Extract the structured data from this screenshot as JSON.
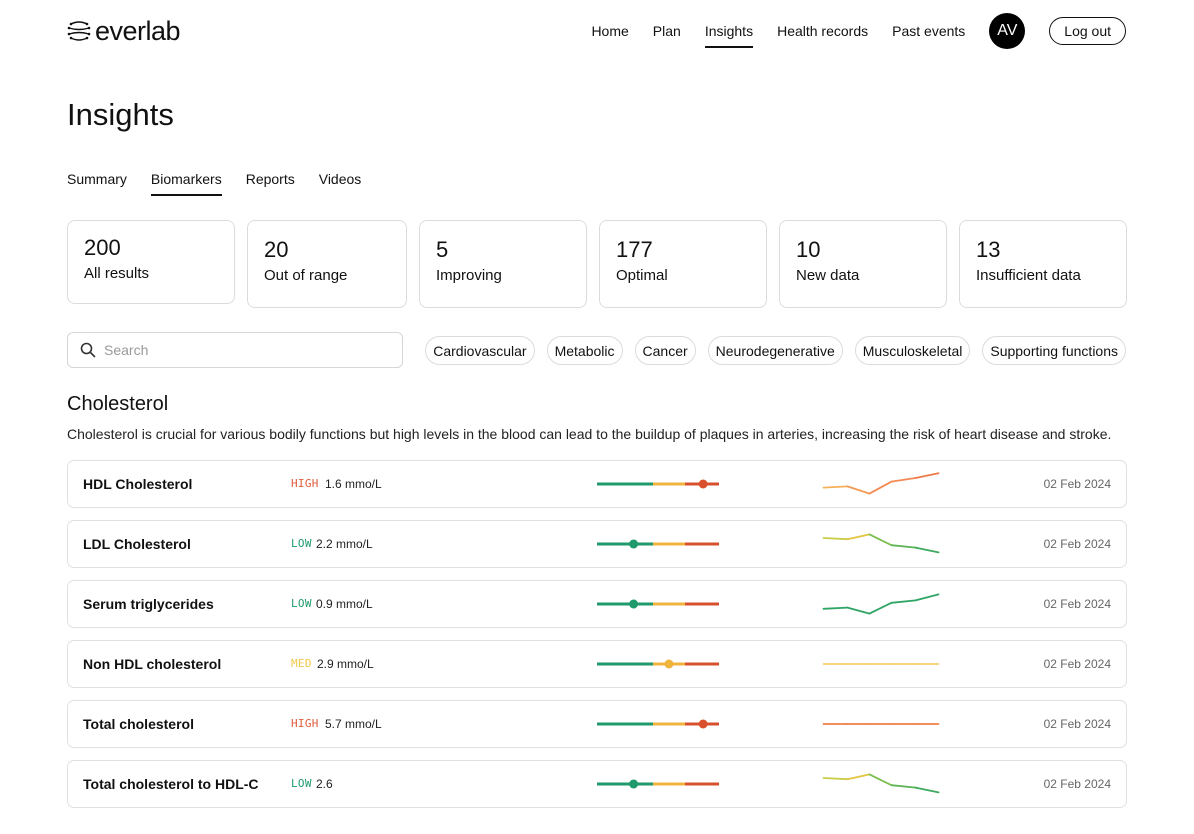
{
  "brand": {
    "name": "everlab"
  },
  "nav": {
    "items": [
      {
        "label": "Home",
        "active": false
      },
      {
        "label": "Plan",
        "active": false
      },
      {
        "label": "Insights",
        "active": true
      },
      {
        "label": "Health records",
        "active": false
      },
      {
        "label": "Past events",
        "active": false
      }
    ],
    "avatar_initials": "AV",
    "logout_label": "Log out"
  },
  "page": {
    "title": "Insights"
  },
  "tabs": [
    {
      "label": "Summary",
      "active": false
    },
    {
      "label": "Biomarkers",
      "active": true
    },
    {
      "label": "Reports",
      "active": false
    },
    {
      "label": "Videos",
      "active": false
    }
  ],
  "stats": [
    {
      "value": "200",
      "label": "All results"
    },
    {
      "value": "20",
      "label": "Out of range"
    },
    {
      "value": "5",
      "label": "Improving"
    },
    {
      "value": "177",
      "label": "Optimal"
    },
    {
      "value": "10",
      "label": "New data"
    },
    {
      "value": "13",
      "label": "Insufficient data"
    }
  ],
  "search": {
    "placeholder": "Search",
    "value": ""
  },
  "filters": [
    "Cardiovascular",
    "Metabolic",
    "Cancer",
    "Neurodegenerative",
    "Musculoskeletal",
    "Supporting functions"
  ],
  "section": {
    "title": "Cholesterol",
    "description": "Cholesterol is crucial for various bodily functions but high levels in the blood can lead to the buildup of plaques in arteries, increasing the risk of heart disease and stroke."
  },
  "colors": {
    "low": "#1e9a6c",
    "med": "#f0b43c",
    "high": "#d9512c",
    "range_green": "#1e9a6c",
    "range_yellow": "#f0b43c",
    "range_red": "#d9512c"
  },
  "biomarkers": [
    {
      "name": "HDL Cholesterol",
      "status": "HIGH",
      "status_color": "#e05a3a",
      "value": "1.6 mmo/L",
      "range_position": 0.87,
      "marker_color": "#d9512c",
      "trend": [
        0.35,
        0.4,
        0.1,
        0.6,
        0.75,
        0.95
      ],
      "trend_colors": [
        "#f6b15c",
        "#f6b15c",
        "#f39a55",
        "#f58a50",
        "#f38a55",
        "#ef7a48"
      ],
      "date": "02 Feb 2024"
    },
    {
      "name": "LDL Cholesterol",
      "status": "LOW",
      "status_color": "#1e9a6c",
      "value": "2.2 mmo/L",
      "range_position": 0.3,
      "marker_color": "#1e9a6c",
      "trend": [
        0.75,
        0.7,
        0.9,
        0.45,
        0.35,
        0.15
      ],
      "trend_colors": [
        "#b8c94a",
        "#c9cd48",
        "#e2c543",
        "#7cbf4e",
        "#5db555",
        "#3fa95e"
      ],
      "date": "02 Feb 2024"
    },
    {
      "name": "Serum triglycerides",
      "status": "LOW",
      "status_color": "#1e9a6c",
      "value": "0.9 mmo/L",
      "range_position": 0.3,
      "marker_color": "#1e9a6c",
      "trend": [
        0.3,
        0.35,
        0.1,
        0.55,
        0.65,
        0.9
      ],
      "trend_colors": [
        "#2fa565",
        "#2fa565",
        "#2fa565",
        "#2fa565",
        "#2fa565",
        "#2fa565"
      ],
      "date": "02 Feb 2024"
    },
    {
      "name": "Non HDL cholesterol",
      "status": "MED",
      "status_color": "#f0c84a",
      "value": "2.9 mmo/L",
      "range_position": 0.59,
      "marker_color": "#f0b43c",
      "trend": [
        0.5,
        0.5,
        0.5,
        0.5,
        0.5,
        0.5
      ],
      "trend_colors": [
        "#f2cf6a",
        "#f2cf6a",
        "#f2cf6a",
        "#f2cf6a",
        "#f2cf6a",
        "#f2cf6a"
      ],
      "date": "02 Feb 2024"
    },
    {
      "name": "Total cholesterol",
      "status": "HIGH",
      "status_color": "#e05a3a",
      "value": "5.7 mmo/L",
      "range_position": 0.87,
      "marker_color": "#d9512c",
      "trend": [
        0.5,
        0.5,
        0.5,
        0.5,
        0.5,
        0.5
      ],
      "trend_colors": [
        "#ef7f4a",
        "#ef7f4a",
        "#ef7f4a",
        "#ef7f4a",
        "#ef7f4a",
        "#ef7f4a"
      ],
      "date": "02 Feb 2024"
    },
    {
      "name": "Total cholesterol to HDL-C",
      "status": "LOW",
      "status_color": "#1e9a6c",
      "value": "2.6",
      "range_position": 0.3,
      "marker_color": "#1e9a6c",
      "trend": [
        0.75,
        0.7,
        0.9,
        0.45,
        0.35,
        0.15
      ],
      "trend_colors": [
        "#b8c94a",
        "#c9cd48",
        "#e2c543",
        "#7cbf4e",
        "#5db555",
        "#3fa95e"
      ],
      "date": "02 Feb 2024"
    }
  ]
}
